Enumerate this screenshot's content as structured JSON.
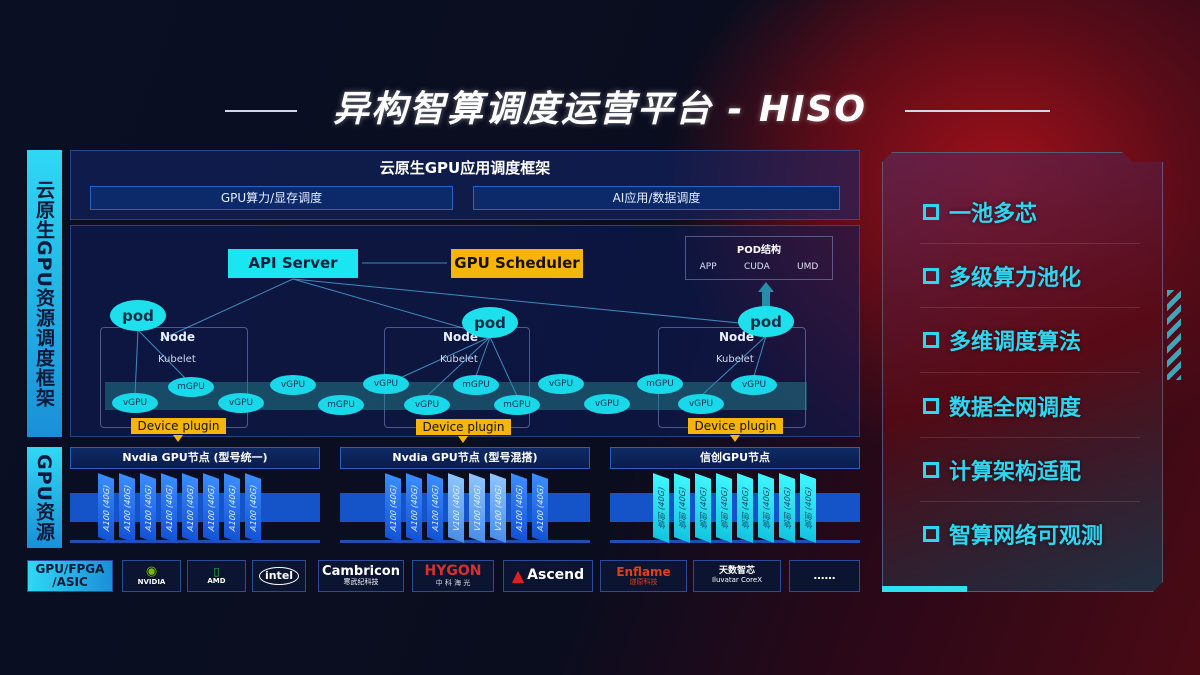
{
  "title": "异构智算调度运营平台 - HISO",
  "left_labels": {
    "framework": "云原生GPU资源调度框架",
    "resources": "GPU资源"
  },
  "framework": {
    "header": "云原生GPU应用调度框架",
    "sub_boxes": [
      "GPU算力/显存调度",
      "AI应用/数据调度"
    ],
    "api_server": "API Server",
    "gpu_scheduler": "GPU Scheduler",
    "pod_structure": {
      "title": "POD结构",
      "items": [
        "APP",
        "CUDA",
        "UMD"
      ]
    },
    "pod_label": "pod",
    "node_label": "Node",
    "kubelet_label": "Kubelet",
    "device_plugin_label": "Device plugin",
    "gpu_instances": [
      "vGPU",
      "mGPU",
      "vGPU",
      "vGPU",
      "mGPU",
      "vGPU",
      "vGPU",
      "mGPU",
      "mGPU",
      "vGPU",
      "vGPU",
      "mGPU",
      "vGPU",
      "vGPU"
    ]
  },
  "gpu_nodes": [
    {
      "title": "Nvdia GPU节点 (型号统一)",
      "cards": [
        "A100 (40G)",
        "A100 (40G)",
        "A100 (40G)",
        "A100 (40G)",
        "A100 (40G)",
        "A100 (40G)",
        "A100 (40G)",
        "A100 (40G)"
      ]
    },
    {
      "title": "Nvdia GPU节点 (型号混搭)",
      "cards": [
        "A100 (40G)",
        "A100 (40G)",
        "A100 (40G)",
        "V100 (40G)",
        "V100 (40G)",
        "V100 (40G)",
        "A100 (40G)",
        "A100 (40G)"
      ]
    },
    {
      "title": "信创GPU节点",
      "cards": [
        "信创 (40G)",
        "信创 (40G)",
        "信创 (40G)",
        "信创 (40G)",
        "信创 (40G)",
        "信创 (40G)",
        "信创 (40G)",
        "信创 (40G)"
      ]
    }
  ],
  "vendors": {
    "label": "GPU/FPGA /ASIC",
    "items": [
      {
        "name": "NVIDIA",
        "sub": ""
      },
      {
        "name": "AMD",
        "sub": ""
      },
      {
        "name": "intel",
        "sub": ""
      },
      {
        "name": "Cambricon",
        "sub": "寒武纪科技"
      },
      {
        "name": "HYGON",
        "sub": "中 科 海 光"
      },
      {
        "name": "Ascend",
        "sub": ""
      },
      {
        "name": "Enflame",
        "sub": "燧原科技"
      },
      {
        "name": "天数智芯",
        "sub": "Iluvatar CoreX"
      },
      {
        "name": "……",
        "sub": ""
      }
    ]
  },
  "features": [
    "一池多芯",
    "多级算力池化",
    "多维调度算法",
    "数据全网调度",
    "计算架构适配",
    "智算网络可观测"
  ],
  "colors": {
    "accent_cyan": "#19e6f0",
    "accent_gold": "#f5b50a",
    "gpu_blue": "#1554c8",
    "feature_text": "#2fd6f2"
  }
}
